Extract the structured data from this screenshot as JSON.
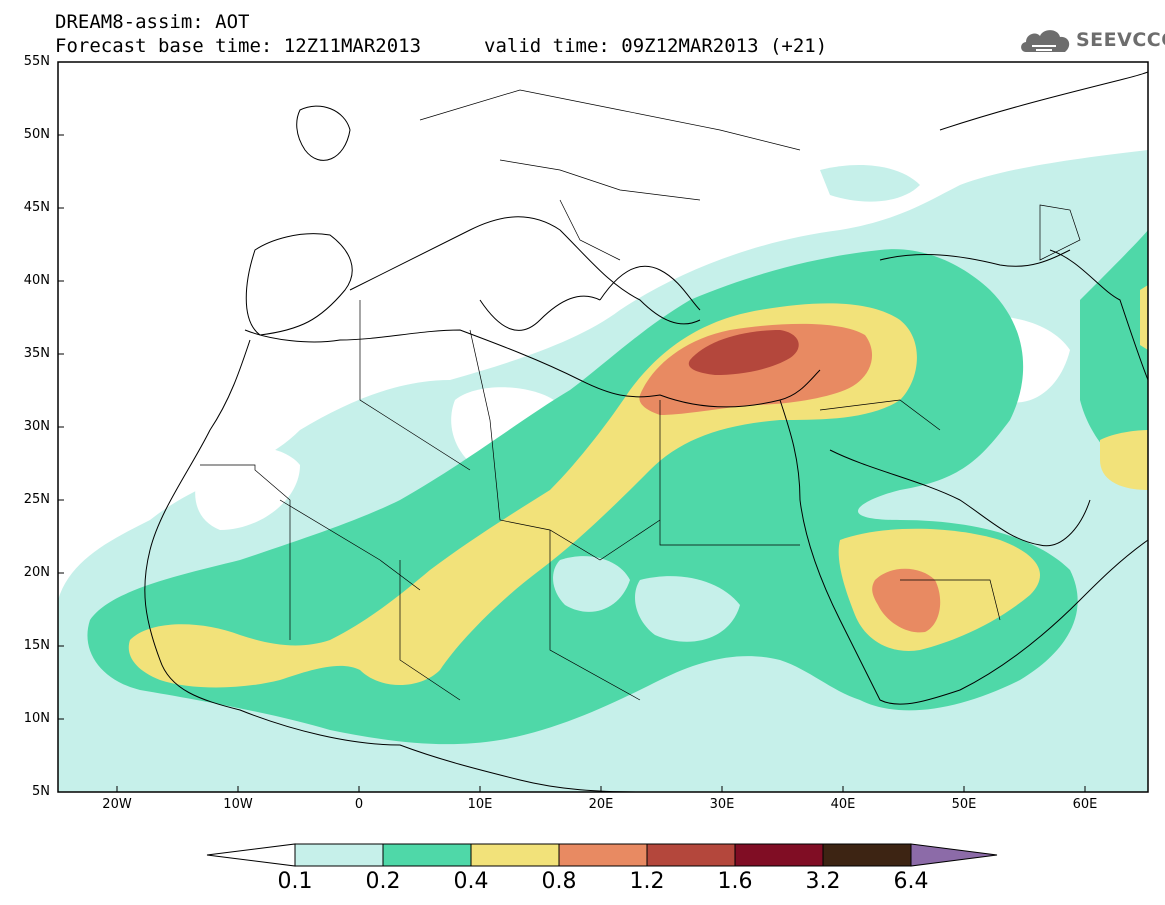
{
  "header": {
    "title_line1": "DREAM8-assim: AOT",
    "base_time": "Forecast base time: 12Z11MAR2013",
    "valid_time": "valid time: 09Z12MAR2013 (+21)",
    "logo_text": "SEEVCCC"
  },
  "map": {
    "lat_labels": [
      "55N",
      "50N",
      "45N",
      "40N",
      "35N",
      "30N",
      "25N",
      "20N",
      "15N",
      "10N",
      "5N"
    ],
    "lon_labels": [
      "20W",
      "10W",
      "0",
      "10E",
      "20E",
      "30E",
      "40E",
      "50E",
      "60E"
    ],
    "extent": {
      "lon_min": -25,
      "lon_max": 65,
      "lat_min": 5,
      "lat_max": 55
    },
    "variable": "AOT"
  },
  "colorbar": {
    "labels": [
      "0.1",
      "0.2",
      "0.4",
      "0.8",
      "1.2",
      "1.6",
      "3.2",
      "6.4"
    ],
    "colors": [
      "#ffffff",
      "#c6f0ea",
      "#4fd8a8",
      "#f2e27a",
      "#e88a62",
      "#b4473c",
      "#800d24",
      "#3d2413",
      "#8c6ba8"
    ]
  }
}
